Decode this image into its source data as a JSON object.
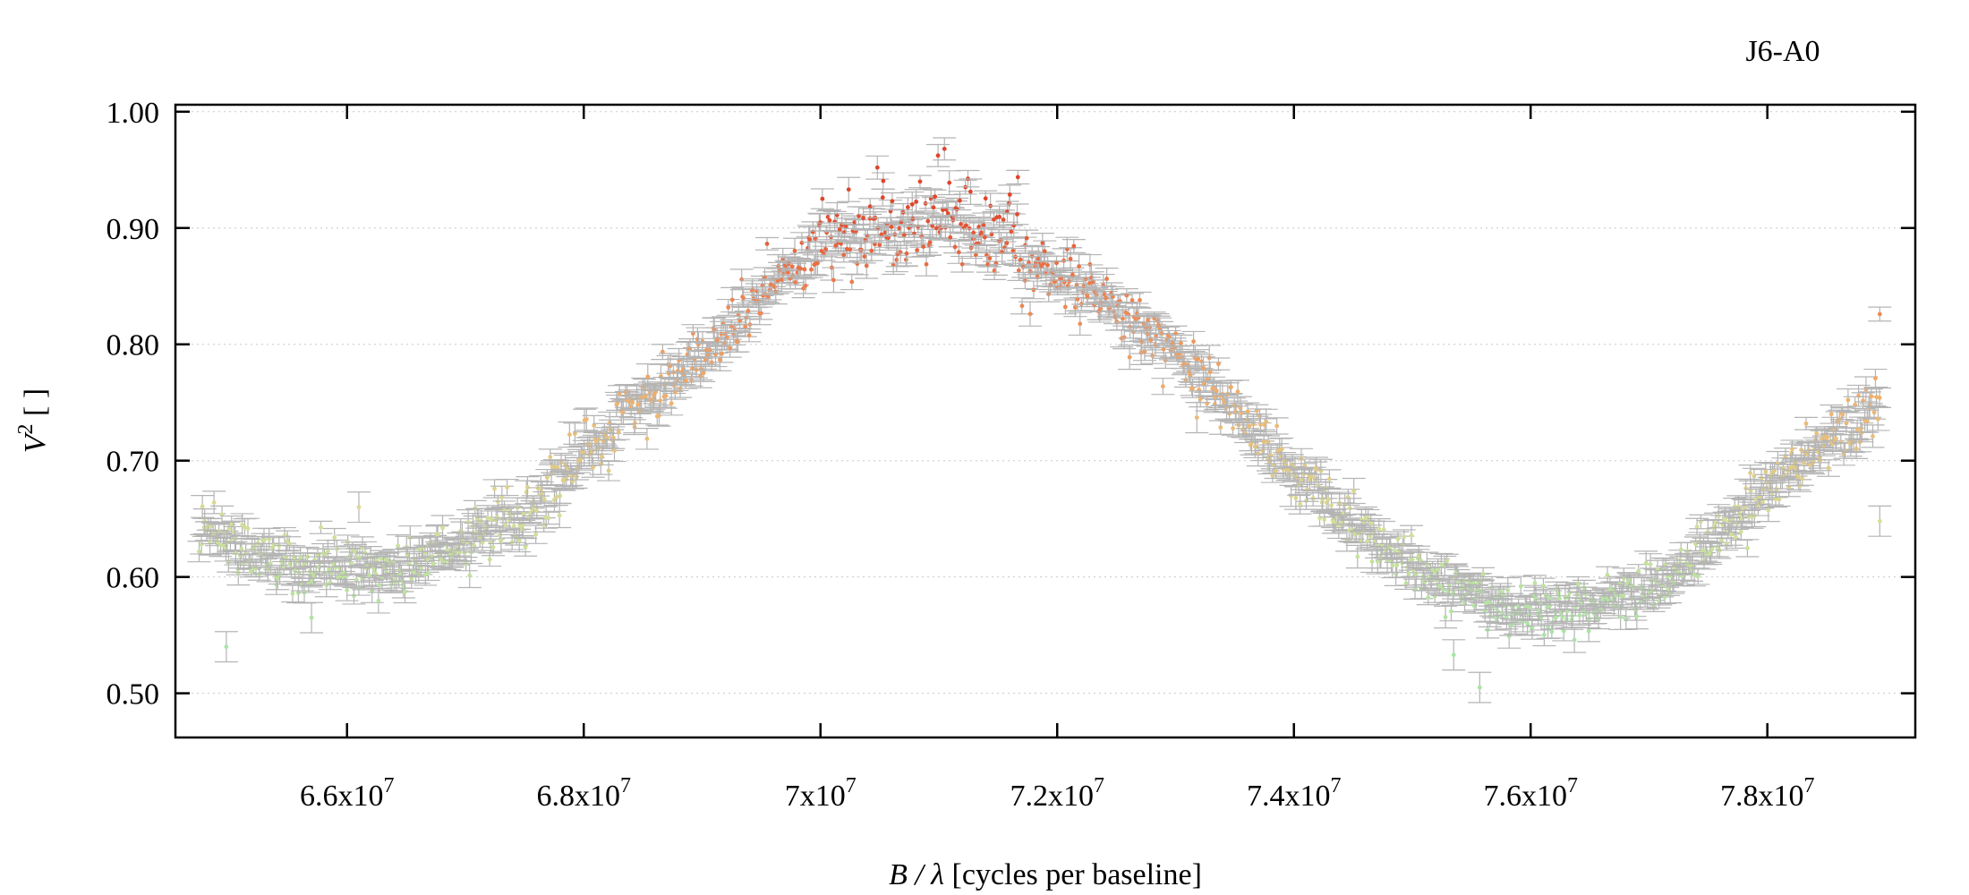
{
  "chart_data": {
    "type": "scatter",
    "title": "J6-A0",
    "xlabel_italic": "B / λ",
    "xlabel_rest": " [cycles per baseline]",
    "ylabel_symbol": "V",
    "ylabel_sup": "2",
    "ylabel_rest": " [ ]",
    "xlim": [
      64550000,
      79250000
    ],
    "ylim": [
      0.462,
      1.006
    ],
    "x_ticks": [
      {
        "value": 66000000,
        "mantissa": "6.6x10",
        "exp": "7"
      },
      {
        "value": 68000000,
        "mantissa": "6.8x10",
        "exp": "7"
      },
      {
        "value": 70000000,
        "mantissa": "7x10",
        "exp": "7"
      },
      {
        "value": 72000000,
        "mantissa": "7.2x10",
        "exp": "7"
      },
      {
        "value": 74000000,
        "mantissa": "7.4x10",
        "exp": "7"
      },
      {
        "value": 76000000,
        "mantissa": "7.6x10",
        "exp": "7"
      },
      {
        "value": 78000000,
        "mantissa": "7.8x10",
        "exp": "7"
      }
    ],
    "y_ticks": [
      {
        "value": 0.5,
        "label": "0.50"
      },
      {
        "value": 0.6,
        "label": "0.60"
      },
      {
        "value": 0.7,
        "label": "0.70"
      },
      {
        "value": 0.8,
        "label": "0.80"
      },
      {
        "value": 0.9,
        "label": "0.90"
      },
      {
        "value": 1.0,
        "label": "1.00"
      }
    ],
    "grid": "horizontal-dotted",
    "error_bar_color": "#b4b4b4",
    "color_scale": [
      {
        "v": 0.55,
        "color": "#a9e5a6"
      },
      {
        "v": 0.65,
        "color": "#d5de98"
      },
      {
        "v": 0.75,
        "color": "#f0b26e"
      },
      {
        "v": 0.85,
        "color": "#ec7f4f"
      },
      {
        "v": 0.92,
        "color": "#e0452c"
      }
    ],
    "curve_points": [
      [
        64750000,
        0.655
      ],
      [
        65000000,
        0.632
      ],
      [
        65300000,
        0.62
      ],
      [
        65600000,
        0.612
      ],
      [
        65900000,
        0.605
      ],
      [
        66200000,
        0.6
      ],
      [
        66500000,
        0.612
      ],
      [
        66800000,
        0.622
      ],
      [
        67100000,
        0.635
      ],
      [
        67400000,
        0.65
      ],
      [
        67700000,
        0.672
      ],
      [
        68000000,
        0.705
      ],
      [
        68300000,
        0.735
      ],
      [
        68600000,
        0.762
      ],
      [
        68900000,
        0.785
      ],
      [
        69200000,
        0.81
      ],
      [
        69500000,
        0.84
      ],
      [
        69800000,
        0.868
      ],
      [
        70100000,
        0.89
      ],
      [
        70400000,
        0.898
      ],
      [
        70700000,
        0.903
      ],
      [
        71000000,
        0.908
      ],
      [
        71300000,
        0.902
      ],
      [
        71600000,
        0.893
      ],
      [
        71800000,
        0.872
      ],
      [
        72100000,
        0.855
      ],
      [
        72400000,
        0.838
      ],
      [
        72700000,
        0.815
      ],
      [
        73000000,
        0.79
      ],
      [
        73300000,
        0.765
      ],
      [
        73600000,
        0.733
      ],
      [
        73900000,
        0.7
      ],
      [
        74200000,
        0.675
      ],
      [
        74500000,
        0.645
      ],
      [
        74800000,
        0.622
      ],
      [
        75100000,
        0.605
      ],
      [
        75400000,
        0.59
      ],
      [
        75700000,
        0.578
      ],
      [
        76000000,
        0.572
      ],
      [
        76300000,
        0.573
      ],
      [
        76600000,
        0.578
      ],
      [
        76900000,
        0.588
      ],
      [
        77200000,
        0.602
      ],
      [
        77500000,
        0.625
      ],
      [
        77800000,
        0.655
      ],
      [
        78100000,
        0.685
      ],
      [
        78400000,
        0.71
      ],
      [
        78700000,
        0.727
      ],
      [
        78950000,
        0.745
      ]
    ],
    "n_points": 1300,
    "noise_sd": 0.012,
    "outliers": [
      {
        "x": 64980000,
        "y": 0.54
      },
      {
        "x": 65700000,
        "y": 0.565
      },
      {
        "x": 66100000,
        "y": 0.66
      },
      {
        "x": 75570000,
        "y": 0.505
      },
      {
        "x": 75350000,
        "y": 0.533
      },
      {
        "x": 78950000,
        "y": 0.826
      },
      {
        "x": 78950000,
        "y": 0.648
      },
      {
        "x": 73180000,
        "y": 0.737
      }
    ]
  }
}
